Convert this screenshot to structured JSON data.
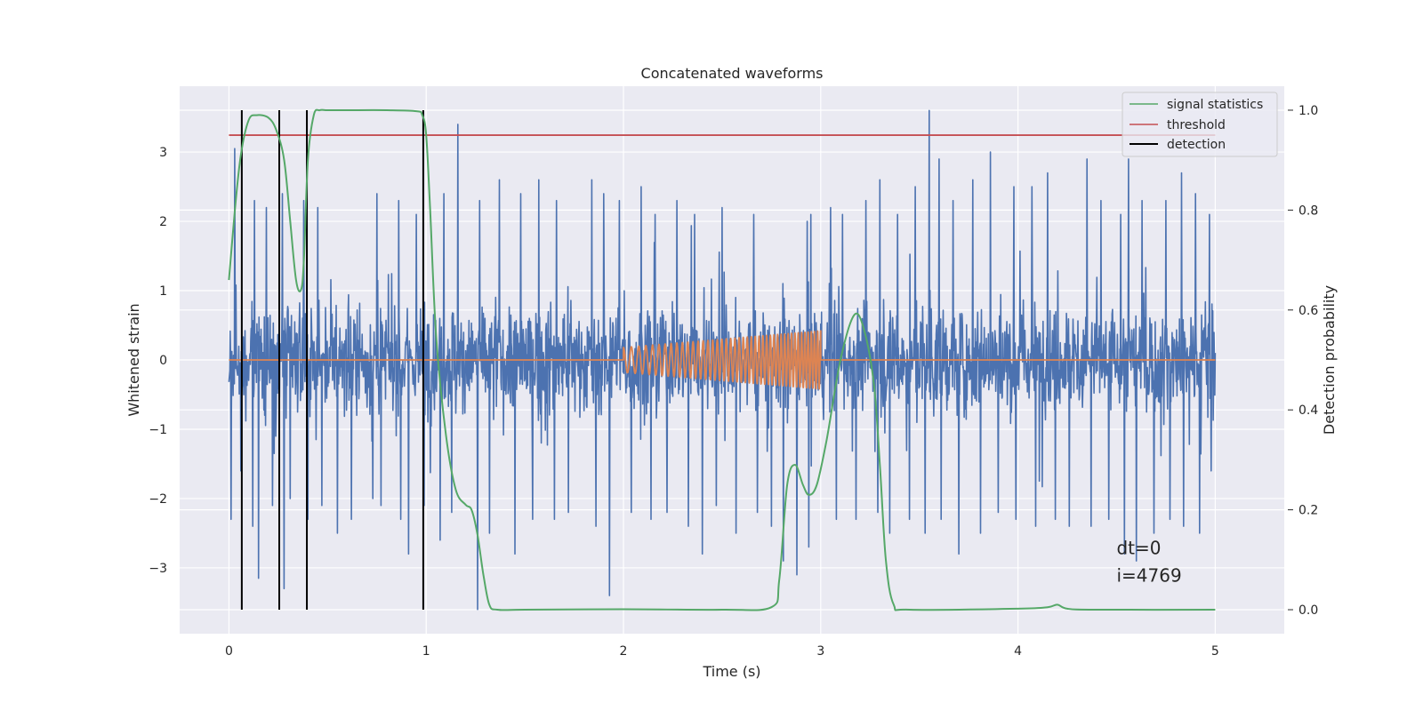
{
  "chart_data": {
    "type": "line",
    "title": "Concatenated waveforms",
    "xlabel": "Time (s)",
    "ylabel": "Whitened strain",
    "y2label": "Detection probability",
    "xlim": [
      -0.25,
      5.35
    ],
    "ylim": [
      -3.95,
      3.95
    ],
    "y2lim": [
      -0.048,
      1.048
    ],
    "x_ticks": [
      0,
      1,
      2,
      3,
      4,
      5
    ],
    "x_tick_labels": [
      "0",
      "1",
      "2",
      "3",
      "4",
      "5"
    ],
    "y_ticks": [
      3,
      2,
      1,
      0,
      -1,
      -2,
      -3
    ],
    "y_tick_labels": [
      "3",
      "2",
      "1",
      "0",
      "−1",
      "−2",
      "−3"
    ],
    "y2_ticks": [
      1.0,
      0.8,
      0.6,
      0.4,
      0.2,
      0.0
    ],
    "y2_tick_labels": [
      "1.0",
      "0.8",
      "0.6",
      "0.4",
      "0.2",
      "0.0"
    ],
    "grid": true,
    "legend_position": "top-right",
    "colors": {
      "background": "#eaeaf2",
      "noise": "#4c72b0",
      "waveform": "#dd8452",
      "statistics": "#55a868",
      "threshold": "#c44e52",
      "detection": "#000000",
      "grid": "#ffffff"
    },
    "series": [
      {
        "name": "",
        "axis": "left",
        "kind": "noise",
        "x_range": [
          0,
          5
        ],
        "description_level": "whitened noise, bulk within about ±0.7, spikes up to about ±3.6",
        "spikes_up": [
          [
            0.03,
            3.05
          ],
          [
            0.13,
            2.3
          ],
          [
            0.19,
            2.2
          ],
          [
            0.27,
            2.4
          ],
          [
            0.38,
            2.3
          ],
          [
            0.45,
            2.2
          ],
          [
            0.62,
            2.5
          ],
          [
            0.75,
            2.4
          ],
          [
            0.86,
            2.3
          ],
          [
            0.95,
            2.1
          ],
          [
            1.09,
            2.4
          ],
          [
            1.16,
            3.4
          ],
          [
            1.27,
            2.3
          ],
          [
            1.37,
            2.6
          ],
          [
            1.48,
            2.4
          ],
          [
            1.57,
            2.6
          ],
          [
            1.66,
            2.3
          ],
          [
            1.84,
            2.6
          ],
          [
            1.9,
            2.4
          ],
          [
            1.98,
            2.3
          ],
          [
            2.09,
            2.5
          ],
          [
            2.16,
            2.1
          ],
          [
            2.27,
            2.3
          ],
          [
            2.36,
            2.1
          ],
          [
            2.5,
            2.2
          ],
          [
            2.66,
            2.1
          ],
          [
            2.81,
            2.2
          ],
          [
            2.95,
            2.1
          ],
          [
            3.05,
            2.2
          ],
          [
            3.11,
            2.1
          ],
          [
            3.23,
            2.3
          ],
          [
            3.3,
            2.6
          ],
          [
            3.39,
            2.1
          ],
          [
            3.48,
            2.5
          ],
          [
            3.55,
            3.6
          ],
          [
            3.6,
            2.9
          ],
          [
            3.67,
            2.3
          ],
          [
            3.77,
            2.6
          ],
          [
            3.86,
            3.0
          ],
          [
            3.98,
            2.5
          ],
          [
            4.07,
            2.5
          ],
          [
            4.15,
            2.7
          ],
          [
            4.26,
            2.1
          ],
          [
            4.35,
            2.9
          ],
          [
            4.42,
            2.3
          ],
          [
            4.52,
            2.1
          ],
          [
            4.56,
            2.9
          ],
          [
            4.63,
            2.3
          ],
          [
            4.75,
            2.3
          ],
          [
            4.83,
            2.7
          ],
          [
            4.9,
            2.4
          ],
          [
            4.97,
            2.1
          ]
        ],
        "spikes_down": [
          [
            0.01,
            -2.3
          ],
          [
            0.06,
            -1.6
          ],
          [
            0.12,
            -2.4
          ],
          [
            0.15,
            -3.15
          ],
          [
            0.22,
            -2.1
          ],
          [
            0.28,
            -3.3
          ],
          [
            0.31,
            -2.0
          ],
          [
            0.4,
            -2.3
          ],
          [
            0.47,
            -2.1
          ],
          [
            0.55,
            -2.5
          ],
          [
            0.62,
            -2.3
          ],
          [
            0.73,
            -2.0
          ],
          [
            0.77,
            -2.1
          ],
          [
            0.87,
            -2.3
          ],
          [
            0.91,
            -2.8
          ],
          [
            0.99,
            -2.1
          ],
          [
            1.07,
            -2.6
          ],
          [
            1.13,
            -2.2
          ],
          [
            1.26,
            -3.6
          ],
          [
            1.32,
            -2.5
          ],
          [
            1.45,
            -2.8
          ],
          [
            1.54,
            -2.3
          ],
          [
            1.65,
            -2.3
          ],
          [
            1.72,
            -2.2
          ],
          [
            1.86,
            -2.4
          ],
          [
            1.93,
            -3.4
          ],
          [
            2.04,
            -2.2
          ],
          [
            2.14,
            -2.3
          ],
          [
            2.22,
            -2.2
          ],
          [
            2.33,
            -2.4
          ],
          [
            2.4,
            -2.8
          ],
          [
            2.47,
            -2.1
          ],
          [
            2.57,
            -2.5
          ],
          [
            2.68,
            -2.2
          ],
          [
            2.75,
            -2.4
          ],
          [
            2.81,
            -2.9
          ],
          [
            2.88,
            -3.1
          ],
          [
            2.94,
            -2.7
          ],
          [
            3.08,
            -2.3
          ],
          [
            3.18,
            -2.3
          ],
          [
            3.29,
            -2.2
          ],
          [
            3.35,
            -2.5
          ],
          [
            3.45,
            -2.3
          ],
          [
            3.53,
            -2.5
          ],
          [
            3.61,
            -2.3
          ],
          [
            3.7,
            -2.8
          ],
          [
            3.81,
            -2.5
          ],
          [
            3.9,
            -2.2
          ],
          [
            3.99,
            -2.3
          ],
          [
            4.09,
            -2.4
          ],
          [
            4.19,
            -2.3
          ],
          [
            4.26,
            -2.4
          ],
          [
            4.37,
            -2.4
          ],
          [
            4.46,
            -2.3
          ],
          [
            4.54,
            -2.8
          ],
          [
            4.6,
            -2.9
          ],
          [
            4.69,
            -2.5
          ],
          [
            4.77,
            -2.3
          ],
          [
            4.84,
            -2.4
          ],
          [
            4.92,
            -2.5
          ],
          [
            4.98,
            -1.6
          ]
        ]
      },
      {
        "name": "",
        "axis": "left",
        "kind": "waveform",
        "x": [
          0,
          2.0,
          3.0,
          5
        ],
        "y": [
          0,
          0,
          0,
          0
        ],
        "chirp": {
          "start": 2.0,
          "end": 3.0,
          "amp_start": 0.18,
          "amp_end": 0.42,
          "cycles": 44
        }
      },
      {
        "name": "signal statistics",
        "axis": "right",
        "x": [
          0,
          0.03,
          0.06,
          0.1,
          0.14,
          0.2,
          0.24,
          0.28,
          0.31,
          0.34,
          0.365,
          0.38,
          0.4,
          0.43,
          0.46,
          0.5,
          0.6,
          0.8,
          0.95,
          0.98,
          1.0,
          1.02,
          1.05,
          1.1,
          1.15,
          1.2,
          1.23,
          1.26,
          1.29,
          1.32,
          1.36,
          1.5,
          2.0,
          2.5,
          2.75,
          2.79,
          2.83,
          2.87,
          2.91,
          2.94,
          2.98,
          3.03,
          3.1,
          3.17,
          3.22,
          3.27,
          3.3,
          3.33,
          3.37,
          3.45,
          4.0,
          4.15,
          4.2,
          4.25,
          4.4,
          5.0
        ],
        "y": [
          0.66,
          0.8,
          0.91,
          0.98,
          0.99,
          0.985,
          0.96,
          0.9,
          0.78,
          0.66,
          0.64,
          0.7,
          0.9,
          0.99,
          1.0,
          1.0,
          1.0,
          1.0,
          0.998,
          0.99,
          0.95,
          0.8,
          0.55,
          0.35,
          0.24,
          0.21,
          0.2,
          0.15,
          0.07,
          0.01,
          0.0,
          0.0,
          0.001,
          0.0,
          0.005,
          0.06,
          0.25,
          0.29,
          0.25,
          0.23,
          0.25,
          0.34,
          0.5,
          0.59,
          0.56,
          0.45,
          0.29,
          0.1,
          0.01,
          0.0,
          0.002,
          0.005,
          0.01,
          0.002,
          0.0,
          0.0
        ]
      },
      {
        "name": "threshold",
        "axis": "right",
        "x": [
          0,
          5
        ],
        "y": [
          0.95,
          0.95
        ]
      },
      {
        "name": "detection",
        "axis": "right",
        "kind": "vlines",
        "x": [
          0.065,
          0.255,
          0.395,
          0.985
        ],
        "y_range": [
          0,
          1
        ]
      }
    ],
    "legend": [
      "signal statistics",
      "threshold",
      "detection"
    ],
    "annotations": [
      {
        "text": "dt=0",
        "x": 4.5,
        "y": -2.8
      },
      {
        "text": "i=4769",
        "x": 4.5,
        "y": -3.2
      }
    ]
  }
}
